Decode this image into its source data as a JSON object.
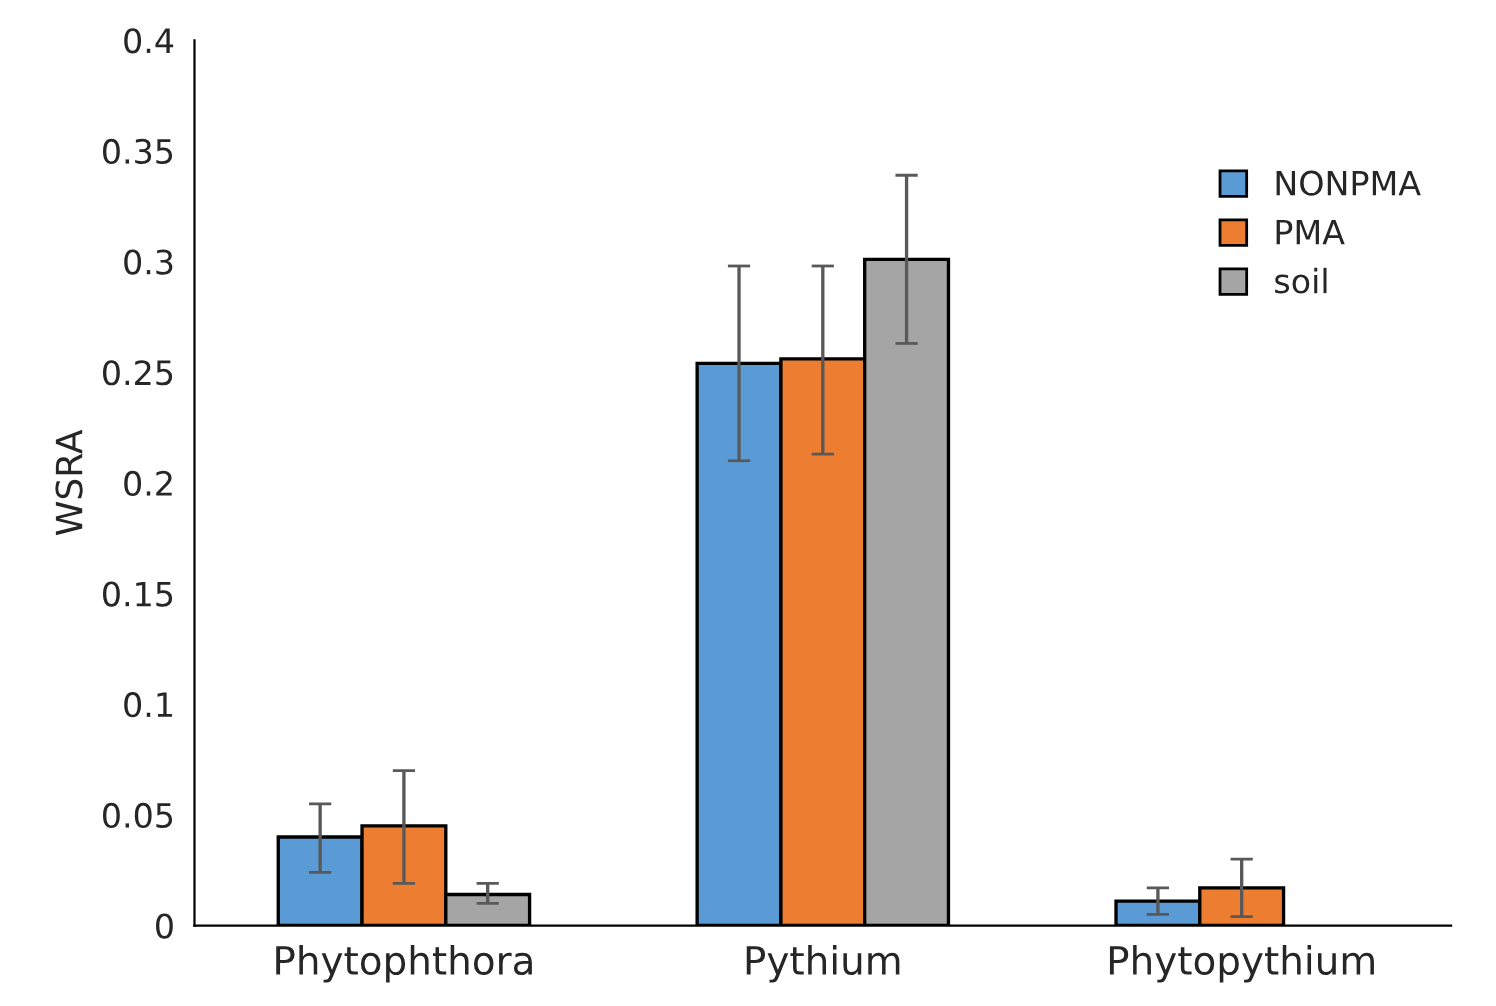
{
  "chart_data": {
    "type": "bar",
    "ylabel": "WSRA",
    "categories": [
      "Phytophthora",
      "Pythium",
      "Phytopythium"
    ],
    "series": [
      {
        "name": "NONPMA",
        "color": "#5b9bd5",
        "values": [
          0.04,
          0.254,
          0.011
        ],
        "errors": [
          [
            0.024,
            0.055
          ],
          [
            0.21,
            0.298
          ],
          [
            0.005,
            0.017
          ]
        ]
      },
      {
        "name": "PMA",
        "color": "#ed7d31",
        "values": [
          0.045,
          0.256,
          0.017
        ],
        "errors": [
          [
            0.019,
            0.07
          ],
          [
            0.213,
            0.298
          ],
          [
            0.004,
            0.03
          ]
        ]
      },
      {
        "name": "soil",
        "color": "#a5a5a5",
        "values": [
          0.014,
          0.301,
          null
        ],
        "errors": [
          [
            0.01,
            0.019
          ],
          [
            0.263,
            0.339
          ],
          null
        ]
      }
    ],
    "ylim": [
      0,
      0.4
    ],
    "yticks": [
      0,
      0.05,
      0.1,
      0.15,
      0.2,
      0.25,
      0.3,
      0.35,
      0.4
    ],
    "grid": false,
    "legend": "right"
  }
}
